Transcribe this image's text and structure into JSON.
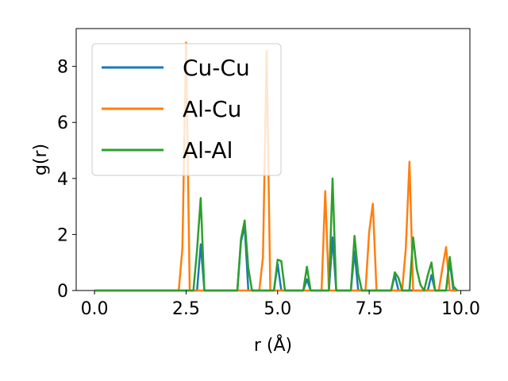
{
  "chart_data": {
    "type": "line",
    "xlabel": "r (Å)",
    "ylabel": "g(r)",
    "xlim": [
      -0.5,
      10.25
    ],
    "ylim": [
      0,
      9.35
    ],
    "x_ticks": [
      0.0,
      2.5,
      5.0,
      7.5,
      10.0
    ],
    "x_tick_labels": [
      "0.0",
      "2.5",
      "5.0",
      "7.5",
      "10.0"
    ],
    "y_ticks": [
      0,
      2,
      4,
      6,
      8
    ],
    "y_tick_labels": [
      "0",
      "2",
      "4",
      "6",
      "8"
    ],
    "grid": false,
    "legend_position": "top-left",
    "series": [
      {
        "name": "Cu-Cu",
        "color": "#1f77b4",
        "points": [
          [
            0,
            0
          ],
          [
            2.7,
            0
          ],
          [
            2.8,
            0
          ],
          [
            2.9,
            1.65
          ],
          [
            3.0,
            0
          ],
          [
            3.9,
            0
          ],
          [
            4.0,
            1.75
          ],
          [
            4.1,
            2.3
          ],
          [
            4.2,
            0
          ],
          [
            4.8,
            0
          ],
          [
            4.9,
            0
          ],
          [
            5.0,
            0.95
          ],
          [
            5.1,
            0
          ],
          [
            5.7,
            0
          ],
          [
            5.8,
            0.4
          ],
          [
            5.9,
            0
          ],
          [
            6.4,
            0
          ],
          [
            6.5,
            1.9
          ],
          [
            6.6,
            0
          ],
          [
            6.9,
            0
          ],
          [
            7.0,
            0
          ],
          [
            7.1,
            1.4
          ],
          [
            7.2,
            0
          ],
          [
            8.1,
            0
          ],
          [
            8.2,
            0.55
          ],
          [
            8.3,
            0
          ],
          [
            9.1,
            0
          ],
          [
            9.2,
            0.55
          ],
          [
            9.3,
            0
          ],
          [
            9.6,
            0
          ],
          [
            9.7,
            1.05
          ],
          [
            9.8,
            0
          ],
          [
            9.9,
            0
          ]
        ]
      },
      {
        "name": "Al-Cu",
        "color": "#ff7f0e",
        "points": [
          [
            0,
            0
          ],
          [
            2.3,
            0
          ],
          [
            2.4,
            1.5
          ],
          [
            2.5,
            8.85
          ],
          [
            2.6,
            0
          ],
          [
            4.5,
            0
          ],
          [
            4.6,
            1.2
          ],
          [
            4.7,
            8.55
          ],
          [
            4.8,
            0
          ],
          [
            6.1,
            0
          ],
          [
            6.2,
            0
          ],
          [
            6.3,
            3.55
          ],
          [
            6.4,
            0
          ],
          [
            7.4,
            0
          ],
          [
            7.5,
            2.1
          ],
          [
            7.6,
            3.1
          ],
          [
            7.7,
            0
          ],
          [
            8.4,
            0
          ],
          [
            8.5,
            1.5
          ],
          [
            8.6,
            4.6
          ],
          [
            8.7,
            0
          ],
          [
            9.4,
            0
          ],
          [
            9.5,
            0.8
          ],
          [
            9.6,
            1.55
          ],
          [
            9.7,
            0
          ],
          [
            9.9,
            0
          ]
        ]
      },
      {
        "name": "Al-Al",
        "color": "#2ca02c",
        "points": [
          [
            0,
            0
          ],
          [
            2.7,
            0
          ],
          [
            2.8,
            1.45
          ],
          [
            2.9,
            3.3
          ],
          [
            3.0,
            0
          ],
          [
            3.9,
            0
          ],
          [
            4.0,
            1.85
          ],
          [
            4.1,
            2.5
          ],
          [
            4.2,
            0.8
          ],
          [
            4.3,
            0
          ],
          [
            4.9,
            0
          ],
          [
            5.0,
            1.1
          ],
          [
            5.1,
            1.05
          ],
          [
            5.2,
            0
          ],
          [
            5.7,
            0
          ],
          [
            5.8,
            0.85
          ],
          [
            5.9,
            0
          ],
          [
            6.3,
            0
          ],
          [
            6.4,
            0
          ],
          [
            6.5,
            4.0
          ],
          [
            6.6,
            0
          ],
          [
            6.9,
            0
          ],
          [
            7.0,
            0
          ],
          [
            7.1,
            1.95
          ],
          [
            7.2,
            0.6
          ],
          [
            7.3,
            0
          ],
          [
            8.0,
            0
          ],
          [
            8.1,
            0
          ],
          [
            8.2,
            0.65
          ],
          [
            8.3,
            0.45
          ],
          [
            8.4,
            0
          ],
          [
            8.6,
            0
          ],
          [
            8.7,
            1.9
          ],
          [
            8.8,
            0.75
          ],
          [
            8.9,
            0.2
          ],
          [
            9.0,
            0
          ],
          [
            9.1,
            0.55
          ],
          [
            9.2,
            1.0
          ],
          [
            9.3,
            0
          ],
          [
            9.6,
            0
          ],
          [
            9.7,
            1.2
          ],
          [
            9.8,
            0.15
          ],
          [
            9.9,
            0
          ]
        ]
      }
    ]
  }
}
